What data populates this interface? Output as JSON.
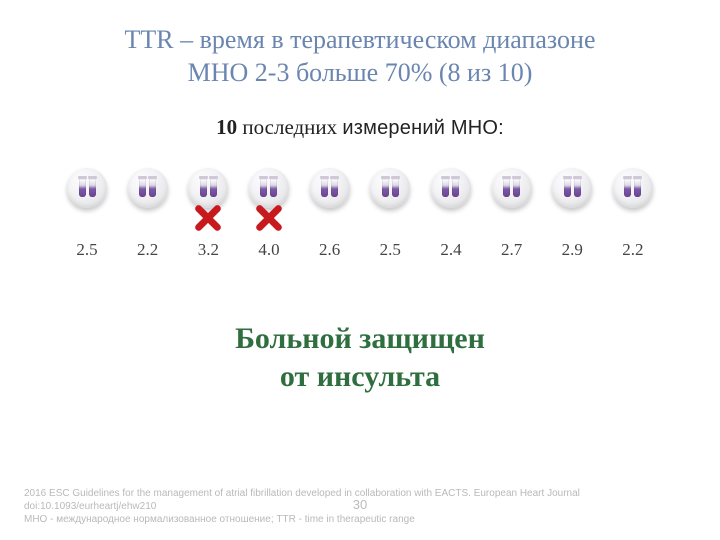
{
  "title_line1": "TTR – время в терапевтическом диапазоне",
  "title_line2": "МНО 2-3 больше 70% (8 из 10)",
  "title_color": "#6a86b0",
  "subtitle_bold": "10",
  "subtitle_rest": " последних ",
  "subtitle_sans": "измерений МНО:",
  "vials": [
    {
      "value": "2.5",
      "out_of_range": false
    },
    {
      "value": "2.2",
      "out_of_range": false
    },
    {
      "value": "3.2",
      "out_of_range": true
    },
    {
      "value": "4.0",
      "out_of_range": true
    },
    {
      "value": "2.6",
      "out_of_range": false
    },
    {
      "value": "2.5",
      "out_of_range": false
    },
    {
      "value": "2.4",
      "out_of_range": false
    },
    {
      "value": "2.7",
      "out_of_range": false
    },
    {
      "value": "2.9",
      "out_of_range": false
    },
    {
      "value": "2.2",
      "out_of_range": false
    }
  ],
  "cross_color": "#c71a1f",
  "conclusion_line1": "Больной защищен",
  "conclusion_line2": "от инсульта",
  "conclusion_color": "#2e6e3f",
  "page_number": "30",
  "footer_line1": "2016 ESC Guidelines for the management of atrial fibrillation developed in collaboration with EACTS. European Heart Journal",
  "footer_line2": "doi:10.1093/eurheartj/ehw210",
  "footer_line3": "МНО - международное нормализованное отношение; TTR - time in therapeutic range"
}
